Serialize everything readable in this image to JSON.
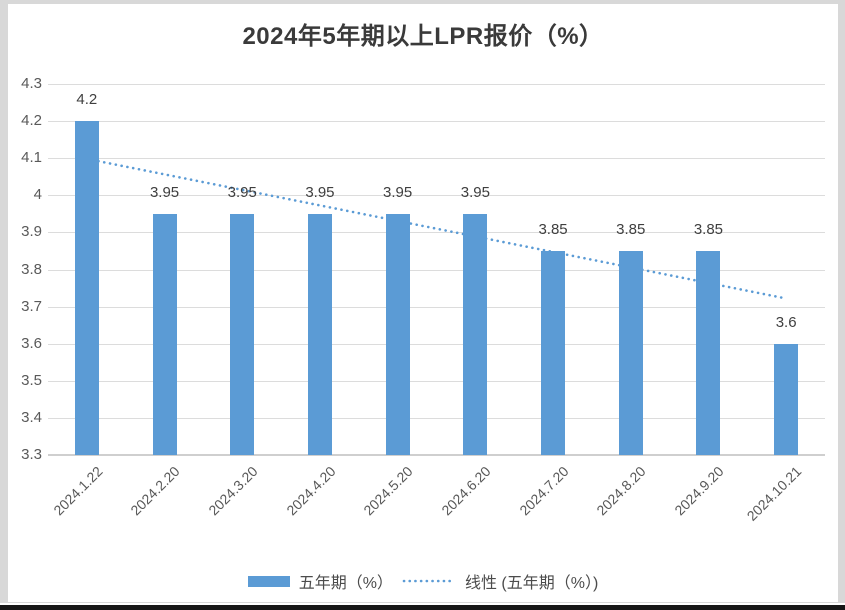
{
  "page": {
    "background_color": "#d8d8d8",
    "bottom_bar_color": "#161616",
    "card_color": "#ffffff"
  },
  "chart_data": {
    "type": "bar",
    "title": "2024年5年期以上LPR报价（%）",
    "categories": [
      "2024.1.22",
      "2024.2.20",
      "2024.3.20",
      "2024.4.20",
      "2024.5.20",
      "2024.6.20",
      "2024.7.20",
      "2024.8.20",
      "2024.9.20",
      "2024.10.21"
    ],
    "series": [
      {
        "name": "五年期（%）",
        "values": [
          4.2,
          3.95,
          3.95,
          3.95,
          3.95,
          3.95,
          3.85,
          3.85,
          3.85,
          3.6
        ],
        "labels": [
          "4.2",
          "3.95",
          "3.95",
          "3.95",
          "3.95",
          "3.95",
          "3.85",
          "3.85",
          "3.85",
          "3.6"
        ],
        "color": "#5b9bd5"
      }
    ],
    "trendline": {
      "name": "线性 (五年期（%）)",
      "type": "linear",
      "style": "dotted",
      "color": "#5b9bd5"
    },
    "ylim": [
      3.3,
      4.3
    ],
    "yticks": [
      "4.3",
      "4.2",
      "4.1",
      "4",
      "3.9",
      "3.8",
      "3.7",
      "3.6",
      "3.5",
      "3.4",
      "3.3"
    ],
    "grid": true,
    "legend_position": "bottom"
  }
}
